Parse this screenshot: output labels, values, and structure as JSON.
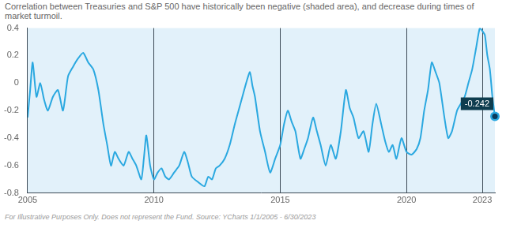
{
  "chart_data": {
    "type": "line",
    "title": "Correlation between Treasuries and S&P 500 have historically been negative (shaded area), and decrease during times of market turmoil.",
    "footnote": "For Illustrative Purposes Only. Does not represent the Fund. Source: YCharts 1/1/2005 - 6/30/2023",
    "x": [
      2005.0,
      2005.1,
      2005.2,
      2005.35,
      2005.5,
      2005.65,
      2005.8,
      2006.0,
      2006.2,
      2006.4,
      2006.6,
      2006.8,
      2007.0,
      2007.2,
      2007.4,
      2007.6,
      2007.8,
      2008.0,
      2008.15,
      2008.3,
      2008.45,
      2008.6,
      2008.8,
      2009.0,
      2009.15,
      2009.3,
      2009.5,
      2009.6,
      2009.7,
      2009.85,
      2010.0,
      2010.15,
      2010.3,
      2010.45,
      2010.6,
      2010.8,
      2011.0,
      2011.2,
      2011.35,
      2011.5,
      2011.75,
      2012.0,
      2012.15,
      2012.3,
      2012.45,
      2012.6,
      2012.8,
      2013.0,
      2013.2,
      2013.35,
      2013.5,
      2013.65,
      2013.8,
      2013.9,
      2014.0,
      2014.2,
      2014.4,
      2014.6,
      2014.8,
      2015.0,
      2015.15,
      2015.3,
      2015.45,
      2015.6,
      2015.8,
      2015.95,
      2016.1,
      2016.3,
      2016.45,
      2016.6,
      2016.8,
      2017.0,
      2017.2,
      2017.4,
      2017.6,
      2017.75,
      2017.9,
      2018.1,
      2018.3,
      2018.5,
      2018.65,
      2018.8,
      2019.0,
      2019.15,
      2019.3,
      2019.45,
      2019.6,
      2019.8,
      2020.0,
      2020.2,
      2020.4,
      2020.55,
      2020.7,
      2020.85,
      2021.0,
      2021.15,
      2021.3,
      2021.5,
      2021.65,
      2021.8,
      2022.0,
      2022.15,
      2022.3,
      2022.45,
      2022.6,
      2022.75,
      2022.9,
      2023.0,
      2023.1,
      2023.2,
      2023.3,
      2023.4,
      2023.5
    ],
    "values": [
      -0.25,
      -0.05,
      0.15,
      -0.1,
      0.0,
      -0.12,
      -0.2,
      -0.1,
      -0.05,
      -0.2,
      0.05,
      0.12,
      0.18,
      0.22,
      0.15,
      0.1,
      -0.05,
      -0.3,
      -0.45,
      -0.6,
      -0.5,
      -0.55,
      -0.6,
      -0.5,
      -0.55,
      -0.6,
      -0.7,
      -0.55,
      -0.38,
      -0.6,
      -0.7,
      -0.65,
      -0.62,
      -0.68,
      -0.7,
      -0.65,
      -0.6,
      -0.5,
      -0.58,
      -0.68,
      -0.72,
      -0.75,
      -0.68,
      -0.7,
      -0.62,
      -0.6,
      -0.55,
      -0.45,
      -0.3,
      -0.2,
      -0.1,
      0.0,
      0.08,
      -0.02,
      -0.1,
      -0.35,
      -0.5,
      -0.65,
      -0.55,
      -0.45,
      -0.3,
      -0.2,
      -0.28,
      -0.35,
      -0.55,
      -0.48,
      -0.4,
      -0.25,
      -0.35,
      -0.45,
      -0.6,
      -0.45,
      -0.55,
      -0.35,
      -0.05,
      -0.18,
      -0.25,
      -0.4,
      -0.35,
      -0.5,
      -0.3,
      -0.15,
      -0.3,
      -0.42,
      -0.5,
      -0.45,
      -0.55,
      -0.4,
      -0.5,
      -0.52,
      -0.48,
      -0.4,
      -0.2,
      -0.05,
      0.15,
      0.08,
      0.0,
      -0.25,
      -0.4,
      -0.35,
      -0.2,
      -0.15,
      -0.1,
      0.0,
      0.1,
      0.25,
      0.4,
      0.38,
      0.35,
      0.2,
      0.1,
      -0.1,
      -0.242
    ],
    "color": "#2aa8e0",
    "xlim": [
      2005,
      2023.5
    ],
    "xticks": [
      2005,
      2010,
      2015,
      2020,
      2023
    ],
    "ylim": [
      -0.8,
      0.4
    ],
    "yticks": [
      -0.8,
      -0.6,
      -0.4,
      -0.2,
      0,
      0.2,
      0.4
    ],
    "grid": true,
    "annotations": [
      {
        "x": 2023.5,
        "y": -0.242,
        "label": "-0.242"
      }
    ]
  }
}
